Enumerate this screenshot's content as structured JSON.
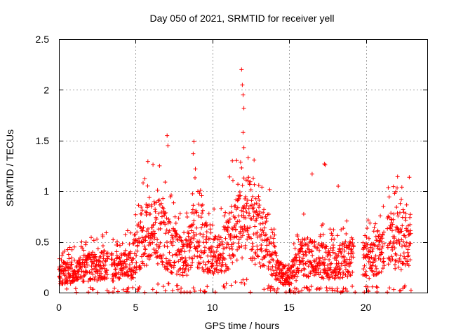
{
  "chart_data": {
    "type": "scatter",
    "title": "Day 050 of 2021, SRMTID for receiver yell",
    "xlabel": "GPS time / hours",
    "ylabel": "SRMTID / TECUs",
    "xlim": [
      0,
      24
    ],
    "ylim": [
      0,
      2.5
    ],
    "x_ticks": [
      0,
      5,
      10,
      15,
      20
    ],
    "x_tick_labels": [
      "0",
      "5",
      "10",
      "15",
      "20"
    ],
    "y_ticks": [
      0,
      0.5,
      1,
      1.5,
      2,
      2.5
    ],
    "y_tick_labels": [
      "0",
      "0.5",
      "1",
      "1.5",
      "2",
      "2.5"
    ],
    "grid": true,
    "marker": "+",
    "color": "#ff0000",
    "estimated_median_trend": [
      {
        "x": 0,
        "y": 0.18
      },
      {
        "x": 1,
        "y": 0.2
      },
      {
        "x": 2,
        "y": 0.25
      },
      {
        "x": 3,
        "y": 0.26
      },
      {
        "x": 4,
        "y": 0.22
      },
      {
        "x": 4.8,
        "y": 0.3
      },
      {
        "x": 5.5,
        "y": 0.55
      },
      {
        "x": 6.5,
        "y": 0.6
      },
      {
        "x": 7.2,
        "y": 0.45
      },
      {
        "x": 8.2,
        "y": 0.3
      },
      {
        "x": 8.8,
        "y": 0.55
      },
      {
        "x": 9.5,
        "y": 0.45
      },
      {
        "x": 10.5,
        "y": 0.35
      },
      {
        "x": 11.5,
        "y": 0.6
      },
      {
        "x": 12.3,
        "y": 0.7
      },
      {
        "x": 13,
        "y": 0.55
      },
      {
        "x": 13.6,
        "y": 0.5
      },
      {
        "x": 14.3,
        "y": 0.2
      },
      {
        "x": 15,
        "y": 0.15
      },
      {
        "x": 16,
        "y": 0.35
      },
      {
        "x": 17,
        "y": 0.3
      },
      {
        "x": 18,
        "y": 0.28
      },
      {
        "x": 19.2,
        "y": 0.35
      },
      {
        "x": 20.5,
        "y": 0.3
      },
      {
        "x": 21.6,
        "y": 0.5
      },
      {
        "x": 22.8,
        "y": 0.5
      }
    ],
    "outlier_points": [
      {
        "x": 7.05,
        "y": 1.55
      },
      {
        "x": 7.1,
        "y": 1.45
      },
      {
        "x": 8.8,
        "y": 1.49
      },
      {
        "x": 8.75,
        "y": 1.37
      },
      {
        "x": 11.9,
        "y": 2.2
      },
      {
        "x": 11.95,
        "y": 2.05
      },
      {
        "x": 12.0,
        "y": 1.95
      },
      {
        "x": 12.05,
        "y": 1.82
      },
      {
        "x": 12.0,
        "y": 1.58
      },
      {
        "x": 12.05,
        "y": 1.43
      },
      {
        "x": 11.3,
        "y": 1.3
      },
      {
        "x": 11.9,
        "y": 1.23
      },
      {
        "x": 16.5,
        "y": 1.17
      },
      {
        "x": 17.3,
        "y": 1.27
      },
      {
        "x": 17.35,
        "y": 1.26
      },
      {
        "x": 18.2,
        "y": 1.05
      }
    ],
    "gaps_hours": [
      [
        3.2,
        3.4
      ],
      [
        19.2,
        19.8
      ],
      [
        21.2,
        21.4
      ]
    ]
  }
}
